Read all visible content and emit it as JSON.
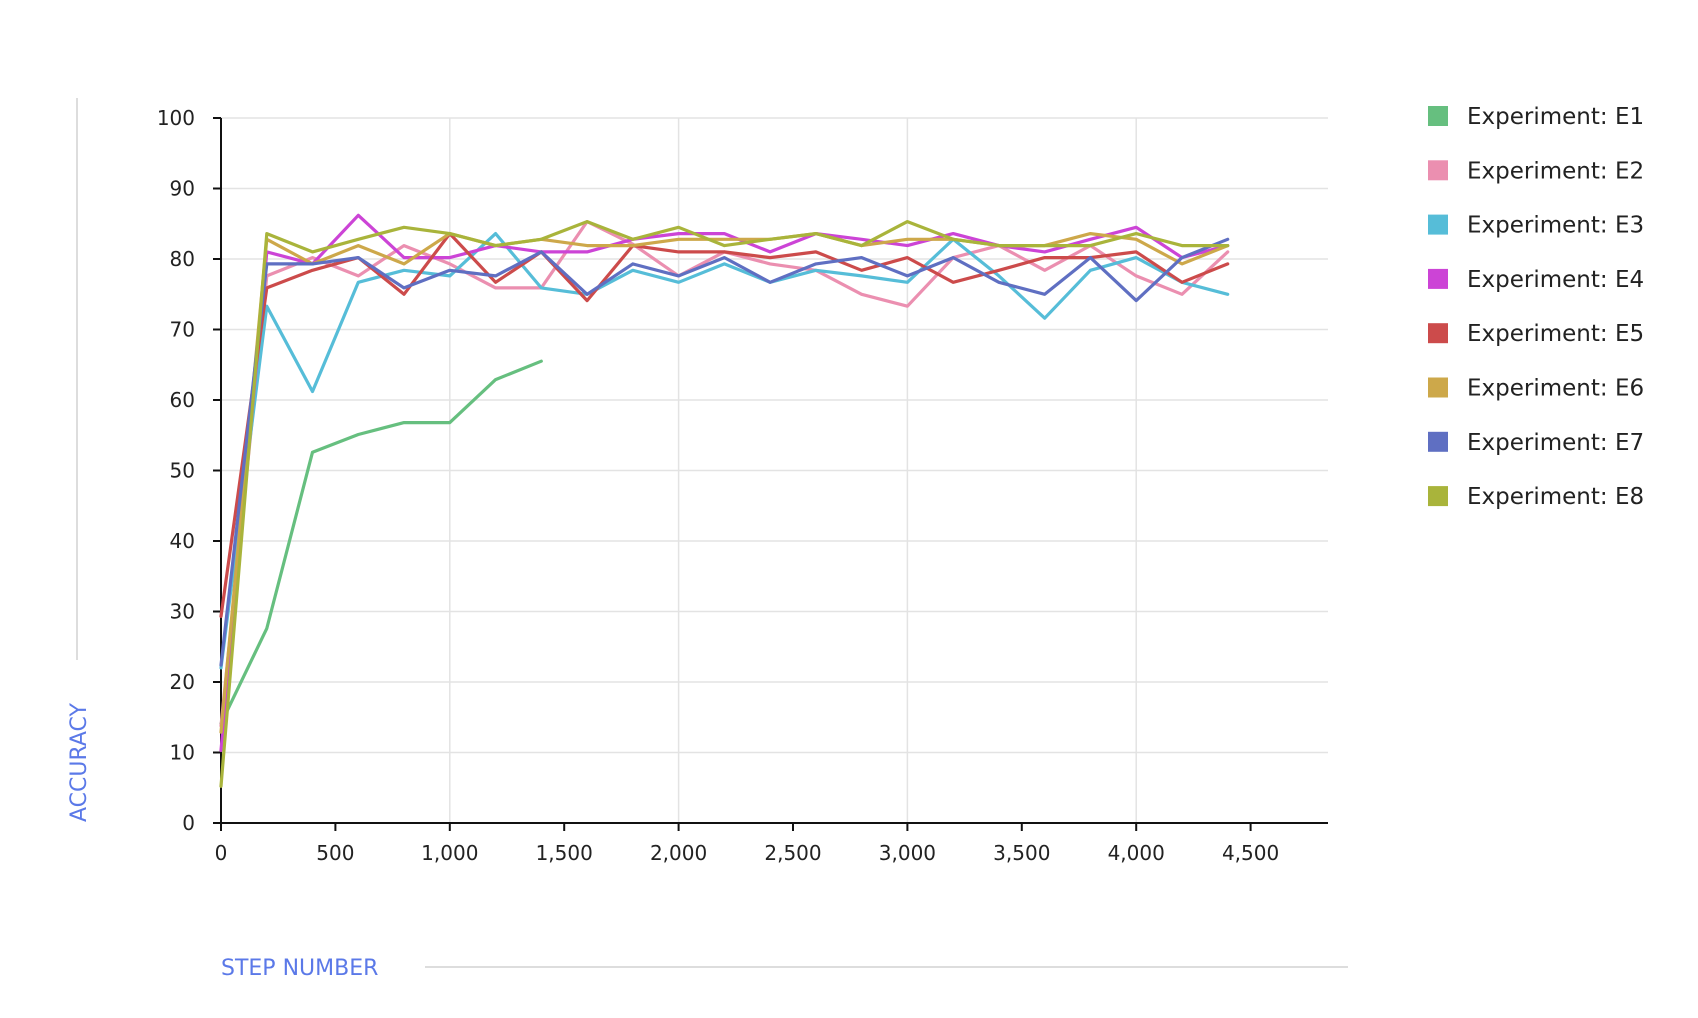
{
  "chart_data": {
    "type": "line",
    "title": "",
    "xlabel": "STEP NUMBER",
    "ylabel": "ACCURACY",
    "xlim": [
      0,
      4850
    ],
    "ylim": [
      0,
      100
    ],
    "x_ticks": [
      0,
      500,
      1000,
      1500,
      2000,
      2500,
      3000,
      3500,
      4000,
      4500
    ],
    "x_tick_labels": [
      "0",
      "500",
      "1,000",
      "1,500",
      "2,000",
      "2,500",
      "3,000",
      "3,500",
      "4,000",
      "4,500"
    ],
    "y_ticks": [
      0,
      10,
      20,
      30,
      40,
      50,
      60,
      70,
      80,
      90,
      100
    ],
    "y_tick_labels": [
      "0",
      "10",
      "20",
      "30",
      "40",
      "50",
      "60",
      "70",
      "80",
      "90",
      "100"
    ],
    "grid": true,
    "legend_position": "right",
    "series": [
      {
        "name": "Experiment: E1",
        "color": "#66bf7f",
        "x": [
          0,
          200,
          400,
          600,
          800,
          1000,
          1200,
          1400
        ],
        "y": [
          14.1,
          27.6,
          52.6,
          55.1,
          56.8,
          56.8,
          62.9,
          65.5
        ]
      },
      {
        "name": "Experiment: E2",
        "color": "#eb8fb0",
        "x": [
          0,
          200,
          400,
          600,
          800,
          1000,
          1200,
          1400,
          1600,
          1800,
          2000,
          2200,
          2400,
          2600,
          2800,
          3000,
          3200,
          3400,
          3600,
          3800,
          4000,
          4200,
          4400
        ],
        "y": [
          13.8,
          77.6,
          80.2,
          77.6,
          81.9,
          79.3,
          75.9,
          75.9,
          85.3,
          82.1,
          77.6,
          81.0,
          79.3,
          78.4,
          75.0,
          73.3,
          80.2,
          81.9,
          78.4,
          81.9,
          77.6,
          75.0,
          81.0
        ]
      },
      {
        "name": "Experiment: E3",
        "color": "#56bdd8",
        "x": [
          0,
          200,
          400,
          600,
          800,
          1000,
          1200,
          1400,
          1600,
          1800,
          2000,
          2200,
          2400,
          2600,
          2800,
          3000,
          3200,
          3400,
          3600,
          3800,
          4000,
          4200,
          4400
        ],
        "y": [
          22.0,
          73.3,
          61.2,
          76.7,
          78.4,
          77.6,
          83.6,
          75.9,
          75.0,
          78.4,
          76.7,
          79.3,
          76.7,
          78.4,
          77.6,
          76.7,
          82.8,
          77.6,
          71.6,
          78.4,
          80.2,
          76.7,
          75.0
        ]
      },
      {
        "name": "Experiment: E4",
        "color": "#cc44d6",
        "x": [
          0,
          200,
          400,
          600,
          800,
          1000,
          1200,
          1400,
          1600,
          1800,
          2000,
          2200,
          2400,
          2600,
          2800,
          3000,
          3200,
          3400,
          3600,
          3800,
          4000,
          4200,
          4400
        ],
        "y": [
          10.3,
          81.0,
          79.3,
          86.2,
          80.2,
          80.2,
          81.9,
          81.0,
          81.0,
          82.8,
          83.6,
          83.6,
          81.0,
          83.6,
          82.8,
          81.9,
          83.6,
          81.9,
          81.0,
          82.8,
          84.5,
          80.2,
          81.9
        ]
      },
      {
        "name": "Experiment: E5",
        "color": "#cc4b4b",
        "x": [
          0,
          200,
          400,
          600,
          800,
          1000,
          1200,
          1400,
          1600,
          1800,
          2000,
          2200,
          2400,
          2600,
          2800,
          3000,
          3200,
          3400,
          3600,
          3800,
          4000,
          4200,
          4400
        ],
        "y": [
          29.3,
          75.9,
          78.4,
          80.2,
          75.0,
          83.6,
          76.7,
          81.0,
          74.1,
          81.9,
          81.0,
          81.0,
          80.2,
          81.0,
          78.4,
          80.2,
          76.7,
          78.4,
          80.2,
          80.2,
          81.0,
          76.7,
          79.3
        ]
      },
      {
        "name": "Experiment: E6",
        "color": "#cda84a",
        "x": [
          0,
          200,
          400,
          600,
          800,
          1000,
          1200,
          1400,
          1600,
          1800,
          2000,
          2200,
          2400,
          2600,
          2800,
          3000,
          3200,
          3400,
          3600,
          3800,
          4000,
          4200,
          4400
        ],
        "y": [
          12.9,
          82.8,
          79.3,
          81.9,
          79.3,
          83.6,
          81.9,
          82.8,
          81.9,
          81.9,
          82.8,
          82.8,
          82.8,
          83.6,
          81.9,
          82.8,
          82.8,
          81.9,
          81.9,
          83.6,
          82.8,
          79.3,
          81.9
        ]
      },
      {
        "name": "Experiment: E7",
        "color": "#5f6fc2",
        "x": [
          0,
          200,
          400,
          600,
          800,
          1000,
          1200,
          1400,
          1600,
          1800,
          2000,
          2200,
          2400,
          2600,
          2800,
          3000,
          3200,
          3400,
          3600,
          3800,
          4000,
          4200,
          4400
        ],
        "y": [
          22.4,
          79.3,
          79.3,
          80.2,
          75.9,
          78.4,
          77.6,
          81.0,
          75.0,
          79.3,
          77.6,
          80.2,
          76.7,
          79.3,
          80.2,
          77.6,
          80.2,
          76.7,
          75.0,
          80.2,
          74.1,
          80.2,
          82.8
        ]
      },
      {
        "name": "Experiment: E8",
        "color": "#a9b43b",
        "x": [
          0,
          200,
          400,
          600,
          800,
          1000,
          1200,
          1400,
          1600,
          1800,
          2000,
          2200,
          2400,
          2600,
          2800,
          3000,
          3200,
          3400,
          3600,
          3800,
          4000,
          4200,
          4400
        ],
        "y": [
          5.2,
          83.6,
          81.0,
          82.8,
          84.5,
          83.6,
          81.9,
          82.8,
          85.3,
          82.8,
          84.5,
          81.9,
          82.8,
          83.6,
          81.9,
          85.3,
          82.8,
          81.9,
          81.9,
          81.9,
          83.6,
          81.9,
          81.9
        ]
      }
    ]
  }
}
